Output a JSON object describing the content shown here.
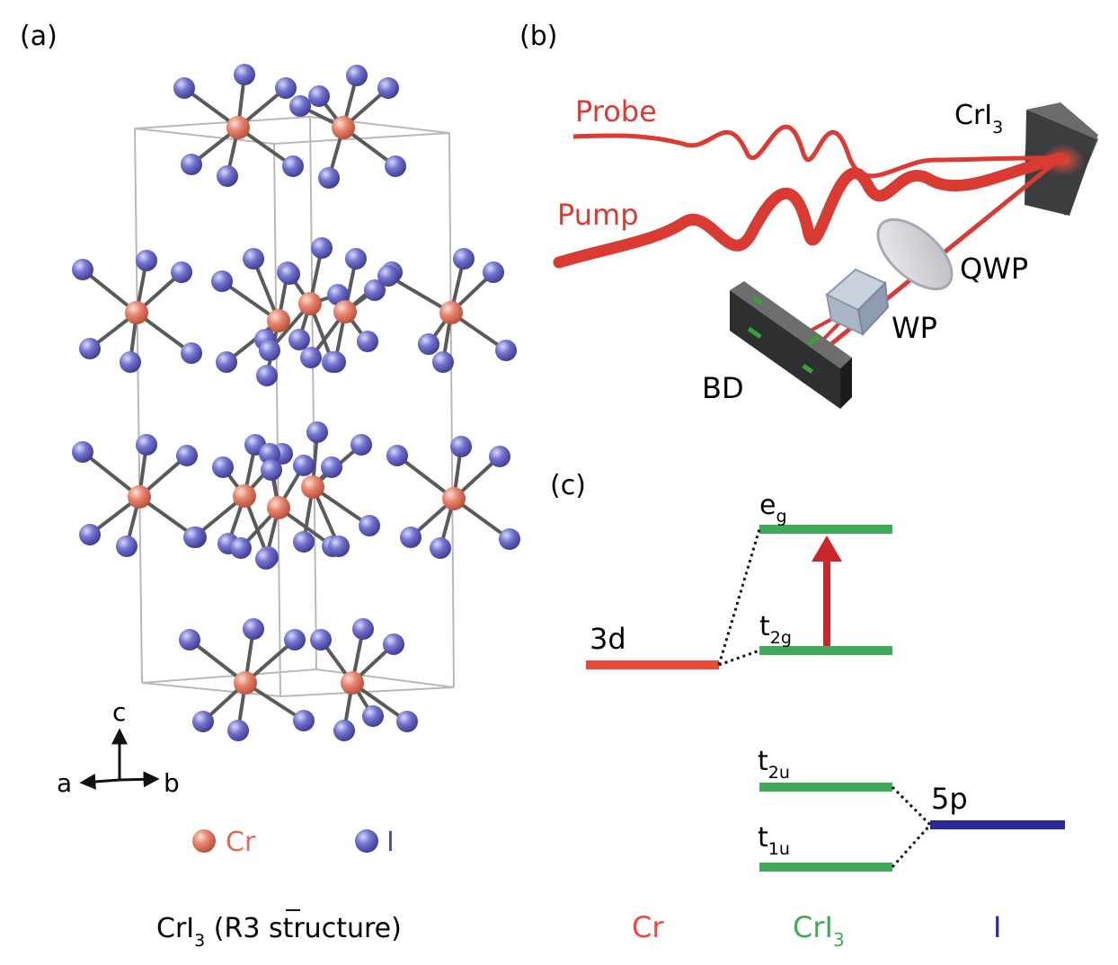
{
  "panels": {
    "a": {
      "tag": "(a)"
    },
    "b": {
      "tag": "(b)"
    },
    "c": {
      "tag": "(c)"
    }
  },
  "crystal": {
    "axes": {
      "c": "c",
      "a": "a",
      "b": "b"
    },
    "legend": {
      "cr": "Cr",
      "i": "I"
    },
    "caption": {
      "pre": "CrI",
      "sub": "3",
      "open": " (R",
      "bar": "3",
      "post": " structure)"
    },
    "colors": {
      "cr": "#e8846f",
      "i": "#6f6fc9",
      "bond": "#5a5a5a",
      "cell": "#b8b8b8"
    }
  },
  "setup": {
    "probe": "Probe",
    "pump": "Pump",
    "sample": {
      "pre": "CrI",
      "sub": "3"
    },
    "qwp": "QWP",
    "wp": "WP",
    "bd": "BD",
    "colors": {
      "beam": "#e0403a",
      "device": "#2f3031",
      "mark": "#3aa03a"
    }
  },
  "levels": {
    "eg": {
      "main": "e",
      "sub": "g"
    },
    "t2g": {
      "main": "t",
      "sub": "2g"
    },
    "d3": "3d",
    "t2u": {
      "main": "t",
      "sub": "2u"
    },
    "t1u": {
      "main": "t",
      "sub": "1u"
    },
    "p5": "5p",
    "columns": {
      "cr": "Cr",
      "cri3": {
        "pre": "CrI",
        "sub": "3"
      },
      "i": "I"
    },
    "colors": {
      "cr": "#e84a3c",
      "cri3": "#3faa58",
      "i": "#28289a",
      "arrow": "#c8282c"
    }
  }
}
